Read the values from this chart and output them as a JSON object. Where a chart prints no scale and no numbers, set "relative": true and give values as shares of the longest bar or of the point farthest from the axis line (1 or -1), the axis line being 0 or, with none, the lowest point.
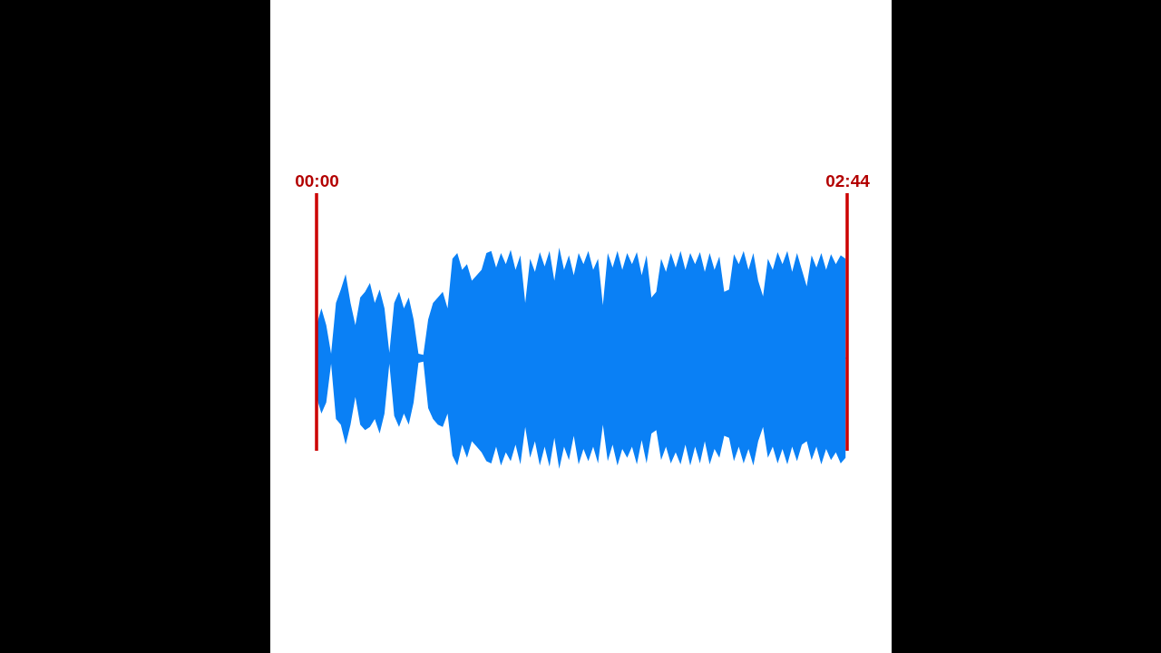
{
  "chart_data": {
    "type": "area",
    "relative": true,
    "tick_labels": "x",
    "xlim": [
      0,
      2.7333
    ],
    "xticks": [
      {
        "value": 0,
        "label": "00:00"
      },
      {
        "value": 2.7333,
        "label": "02:44"
      }
    ],
    "x": [
      0,
      0.025,
      0.05,
      0.075,
      0.1,
      0.125,
      0.15,
      0.175,
      0.2,
      0.225,
      0.25,
      0.275,
      0.3,
      0.325,
      0.35,
      0.375,
      0.4,
      0.425,
      0.45,
      0.475,
      0.5,
      0.525,
      0.55,
      0.575,
      0.6,
      0.625,
      0.65,
      0.675,
      0.7,
      0.725,
      0.75,
      0.775,
      0.8,
      0.825,
      0.85,
      0.875,
      0.9,
      0.925,
      0.95,
      0.975,
      1,
      1.025,
      1.05,
      1.075,
      1.1,
      1.125,
      1.15,
      1.175,
      1.2,
      1.225,
      1.25,
      1.275,
      1.3,
      1.325,
      1.35,
      1.375,
      1.4,
      1.425,
      1.45,
      1.475,
      1.5,
      1.525,
      1.55,
      1.575,
      1.6,
      1.625,
      1.65,
      1.675,
      1.7,
      1.725,
      1.75,
      1.775,
      1.8,
      1.825,
      1.85,
      1.875,
      1.9,
      1.925,
      1.95,
      1.975,
      2,
      2.025,
      2.05,
      2.075,
      2.1,
      2.125,
      2.15,
      2.175,
      2.2,
      2.225,
      2.25,
      2.275,
      2.3,
      2.325,
      2.35,
      2.375,
      2.4,
      2.425,
      2.45,
      2.475,
      2.5,
      2.525,
      2.55,
      2.575,
      2.6,
      2.625,
      2.65,
      2.675,
      2.7,
      2.725
    ],
    "series": [
      {
        "color": "#0a80f5",
        "values": [
          0.3,
          0.45,
          0.3,
          0.04,
          0.5,
          0.62,
          0.76,
          0.5,
          0.3,
          0.55,
          0.6,
          0.68,
          0.5,
          0.62,
          0.45,
          0.05,
          0.5,
          0.6,
          0.45,
          0.55,
          0.35,
          0.04,
          0.03,
          0.35,
          0.5,
          0.55,
          0.6,
          0.45,
          0.9,
          0.95,
          0.8,
          0.85,
          0.7,
          0.75,
          0.8,
          0.95,
          0.97,
          0.82,
          0.95,
          0.85,
          0.98,
          0.8,
          0.93,
          0.5,
          0.9,
          0.78,
          0.96,
          0.83,
          0.97,
          0.7,
          1.0,
          0.8,
          0.93,
          0.75,
          0.95,
          0.85,
          0.97,
          0.8,
          0.9,
          0.48,
          0.95,
          0.82,
          0.97,
          0.8,
          0.95,
          0.85,
          0.96,
          0.75,
          0.93,
          0.55,
          0.6,
          0.9,
          0.78,
          0.95,
          0.82,
          0.97,
          0.8,
          0.95,
          0.85,
          0.96,
          0.78,
          0.95,
          0.8,
          0.92,
          0.6,
          0.62,
          0.94,
          0.85,
          0.97,
          0.8,
          0.95,
          0.7,
          0.56,
          0.9,
          0.8,
          0.96,
          0.85,
          0.97,
          0.78,
          0.95,
          0.8,
          0.65,
          0.93,
          0.82,
          0.95,
          0.8,
          0.94,
          0.85,
          0.93,
          0.9
        ]
      },
      {
        "color": "#0a80f5",
        "values": [
          -0.35,
          -0.5,
          -0.4,
          -0.05,
          -0.55,
          -0.6,
          -0.78,
          -0.6,
          -0.35,
          -0.6,
          -0.65,
          -0.62,
          -0.55,
          -0.68,
          -0.5,
          -0.05,
          -0.52,
          -0.62,
          -0.5,
          -0.6,
          -0.4,
          -0.04,
          -0.03,
          -0.45,
          -0.55,
          -0.6,
          -0.62,
          -0.5,
          -0.88,
          -0.97,
          -0.78,
          -0.9,
          -0.75,
          -0.8,
          -0.85,
          -0.93,
          -0.95,
          -0.8,
          -0.97,
          -0.85,
          -0.93,
          -0.78,
          -0.96,
          -0.62,
          -0.9,
          -0.75,
          -0.97,
          -0.8,
          -0.98,
          -0.72,
          -1.0,
          -0.8,
          -0.92,
          -0.7,
          -0.96,
          -0.82,
          -0.93,
          -0.8,
          -0.95,
          -0.6,
          -0.93,
          -0.78,
          -0.97,
          -0.82,
          -0.9,
          -0.8,
          -0.96,
          -0.74,
          -0.95,
          -0.68,
          -0.65,
          -0.92,
          -0.8,
          -0.95,
          -0.85,
          -0.96,
          -0.78,
          -0.97,
          -0.8,
          -0.95,
          -0.75,
          -0.96,
          -0.82,
          -0.9,
          -0.7,
          -0.72,
          -0.93,
          -0.8,
          -0.95,
          -0.82,
          -0.97,
          -0.75,
          -0.62,
          -0.9,
          -0.8,
          -0.95,
          -0.82,
          -0.96,
          -0.8,
          -0.93,
          -0.78,
          -0.75,
          -0.92,
          -0.8,
          -0.96,
          -0.82,
          -0.92,
          -0.85,
          -0.95,
          -0.9
        ]
      }
    ],
    "ref_lines": [
      {
        "axis": "x",
        "value": 0,
        "color": "#cc0000"
      },
      {
        "axis": "x",
        "value": 2.7333,
        "color": "#cc0000"
      }
    ]
  }
}
